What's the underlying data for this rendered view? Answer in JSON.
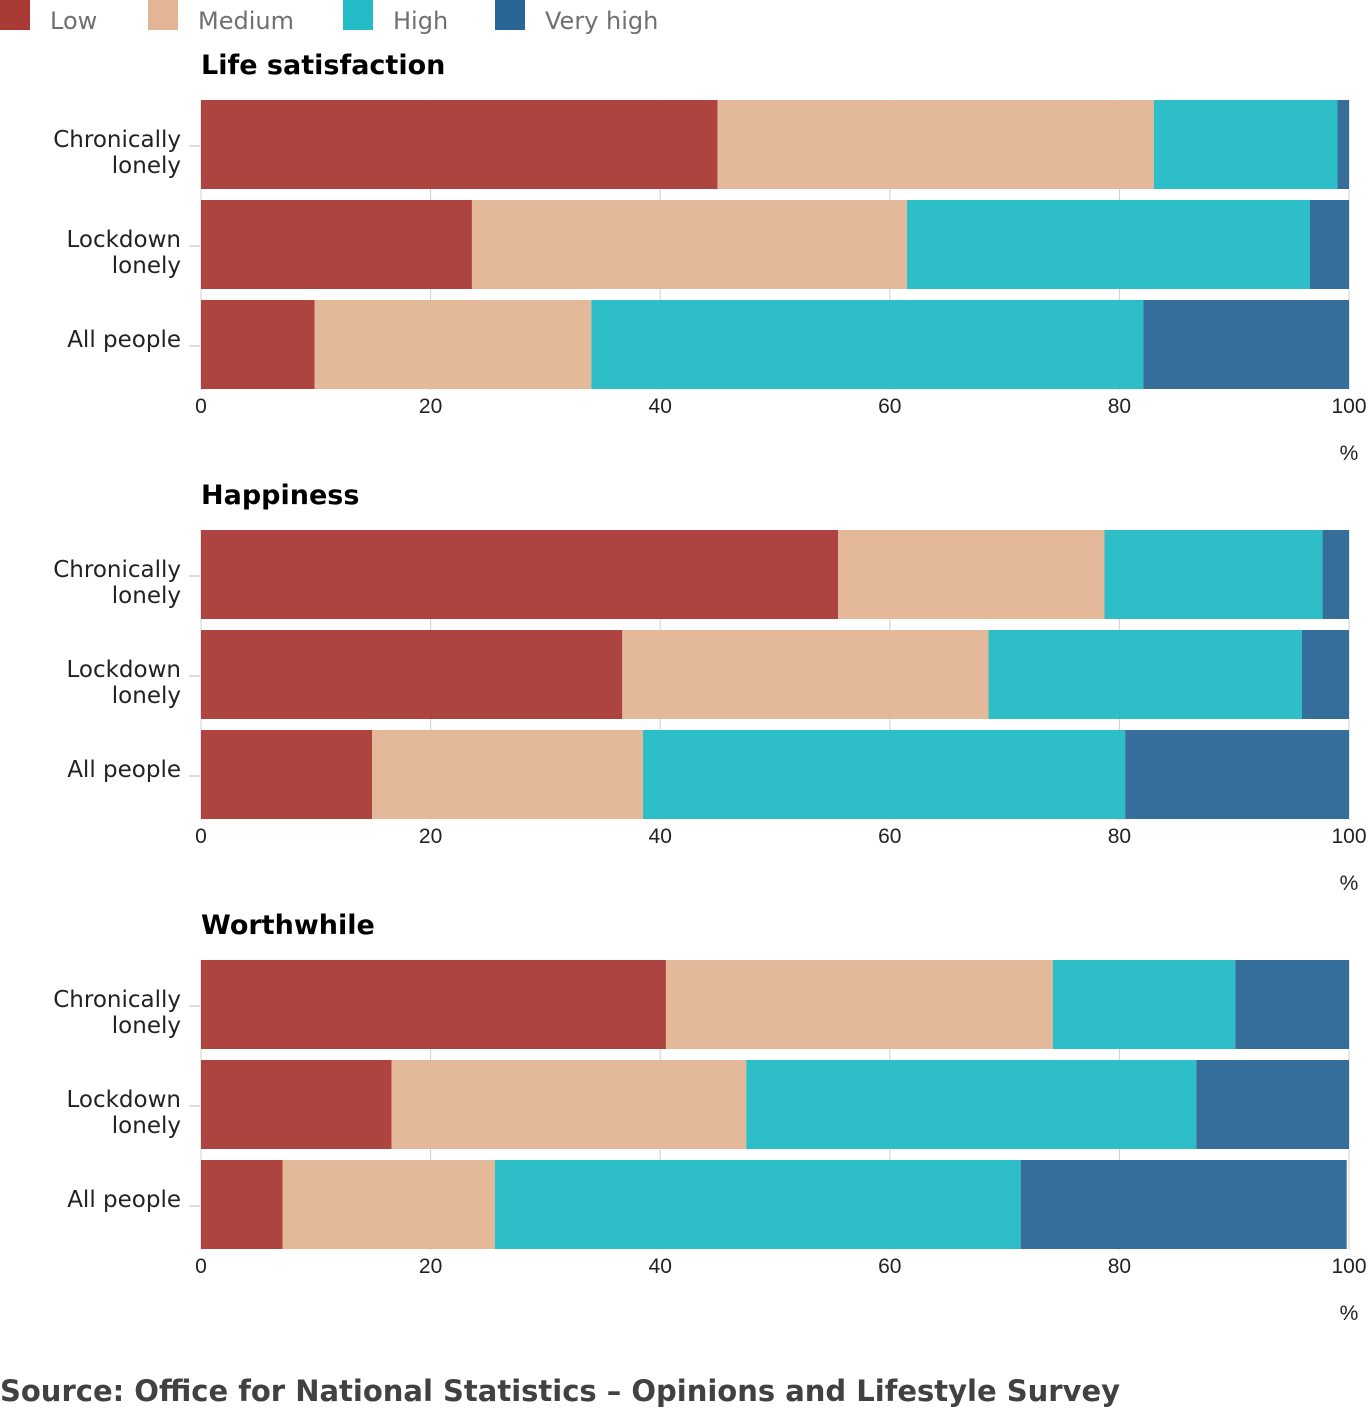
{
  "chart_data": [
    {
      "type": "bar",
      "orientation": "horizontal",
      "stacked": true,
      "title": "Life satisfaction",
      "categories": [
        "Chronically lonely",
        "Lockdown lonely",
        "All people"
      ],
      "series": [
        {
          "name": "Low",
          "values": [
            45,
            23.6,
            9.9
          ]
        },
        {
          "name": "Medium",
          "values": [
            38,
            37.9,
            24.1
          ]
        },
        {
          "name": "High",
          "values": [
            16,
            35.1,
            48.1
          ]
        },
        {
          "name": "Very high",
          "values": [
            1,
            3.4,
            17.9
          ]
        }
      ],
      "xlim": [
        0,
        100
      ],
      "xticks": [
        "0",
        "20",
        "40",
        "60",
        "80",
        "100"
      ],
      "xunit": "%",
      "grid": true
    },
    {
      "type": "bar",
      "orientation": "horizontal",
      "stacked": true,
      "title": "Happiness",
      "categories": [
        "Chronically lonely",
        "Lockdown lonely",
        "All people"
      ],
      "series": [
        {
          "name": "Low",
          "values": [
            55.5,
            36.7,
            14.9
          ]
        },
        {
          "name": "Medium",
          "values": [
            23.2,
            31.9,
            23.6
          ]
        },
        {
          "name": "High",
          "values": [
            19,
            27.3,
            42
          ]
        },
        {
          "name": "Very high",
          "values": [
            2.3,
            4.1,
            19.5
          ]
        }
      ],
      "xlim": [
        0,
        100
      ],
      "xticks": [
        "0",
        "20",
        "40",
        "60",
        "80",
        "100"
      ],
      "xunit": "%",
      "grid": true
    },
    {
      "type": "bar",
      "orientation": "horizontal",
      "stacked": true,
      "title": "Worthwhile",
      "categories": [
        "Chronically lonely",
        "Lockdown lonely",
        "All people"
      ],
      "series": [
        {
          "name": "Low",
          "values": [
            40.5,
            16.6,
            7.1
          ]
        },
        {
          "name": "Medium",
          "values": [
            33.7,
            30.9,
            18.5
          ]
        },
        {
          "name": "High",
          "values": [
            15.9,
            39.2,
            45.8
          ]
        },
        {
          "name": "Very high",
          "values": [
            9.9,
            13.3,
            28.4
          ]
        }
      ],
      "xlim": [
        0,
        100
      ],
      "xticks": [
        "0",
        "20",
        "40",
        "60",
        "80",
        "100"
      ],
      "xunit": "%",
      "grid": true
    }
  ],
  "legend": {
    "placement": "top-left",
    "items": [
      {
        "label": "Low",
        "color": "#a93a36"
      },
      {
        "label": "Medium",
        "color": "#e3b594"
      },
      {
        "label": "High",
        "color": "#23bbc5"
      },
      {
        "label": "Very high",
        "color": "#2a6695"
      }
    ]
  },
  "source": "Source: Office for National Statistics – Opinions and Lifestyle Survey"
}
